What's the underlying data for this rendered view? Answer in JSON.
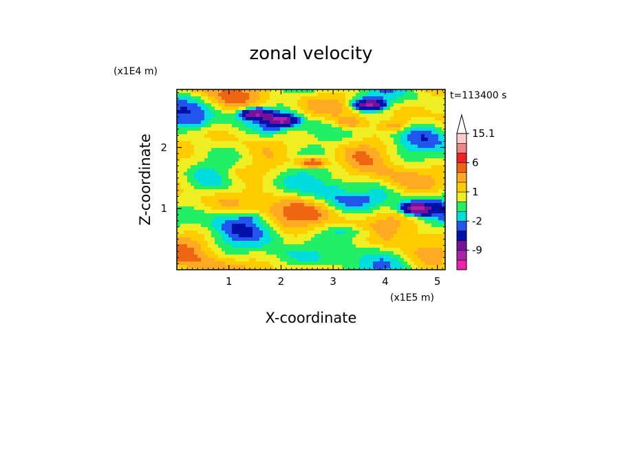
{
  "chart_data": {
    "type": "heatmap",
    "title": "zonal velocity",
    "xlabel": "X-coordinate",
    "ylabel": "Z-coordinate",
    "x_scale_label": "(x1E5 m)",
    "y_scale_label": "(x1E4 m)",
    "time_label": "t=113400 s",
    "xlim": [
      0,
      5.15
    ],
    "ylim": [
      0,
      2.95
    ],
    "x_ticks": [
      1,
      2,
      3,
      4,
      5
    ],
    "x_tick_labels": [
      "1",
      "2",
      "3",
      "4",
      "5"
    ],
    "y_ticks": [
      1,
      2
    ],
    "y_tick_labels": [
      "1",
      "2"
    ],
    "colorbar": {
      "levels": [
        -15,
        -12,
        -9,
        -6,
        -3,
        -2,
        -1,
        0,
        1,
        2,
        3,
        6,
        9,
        12,
        15.1
      ],
      "tick_labels": [
        "15.1",
        "6",
        "1",
        "-2",
        "-9"
      ],
      "tick_values": [
        15.1,
        6,
        1,
        -2,
        -9
      ],
      "colors": [
        "#ee22aa",
        "#aa22aa",
        "#771199",
        "#0011aa",
        "#2255ee",
        "#00dddd",
        "#22ee66",
        "#eeee22",
        "#ffcc00",
        "#ffaa22",
        "#ee6611",
        "#ee2222",
        "#ee8888",
        "#ffcccc"
      ],
      "extend": "max"
    },
    "field_features": [
      {
        "x": 1.5,
        "z": 2.55,
        "value": -9
      },
      {
        "x": 2.0,
        "z": 2.45,
        "value": -9
      },
      {
        "x": 3.7,
        "z": 2.7,
        "value": -9
      },
      {
        "x": 4.6,
        "z": 1.0,
        "value": -9
      },
      {
        "x": 2.6,
        "z": 1.75,
        "value": 6
      },
      {
        "x": 3.3,
        "z": 2.4,
        "value": 3
      },
      {
        "x": 4.2,
        "z": 2.35,
        "value": 3
      },
      {
        "x": 3.45,
        "z": 1.3,
        "value": 2
      },
      {
        "x": 1.4,
        "z": 0.85,
        "value": -1
      },
      {
        "x": 3.6,
        "z": 0.6,
        "value": -1
      },
      {
        "x": 3.2,
        "z": 0.65,
        "value": -1
      },
      {
        "x": 0.4,
        "z": 2.4,
        "value": -1
      },
      {
        "x": 1.8,
        "z": 2.3,
        "value": -1
      },
      {
        "x": 2.2,
        "z": 0.4,
        "value": 1
      },
      {
        "x": 1.2,
        "z": 1.6,
        "value": 1
      }
    ]
  }
}
